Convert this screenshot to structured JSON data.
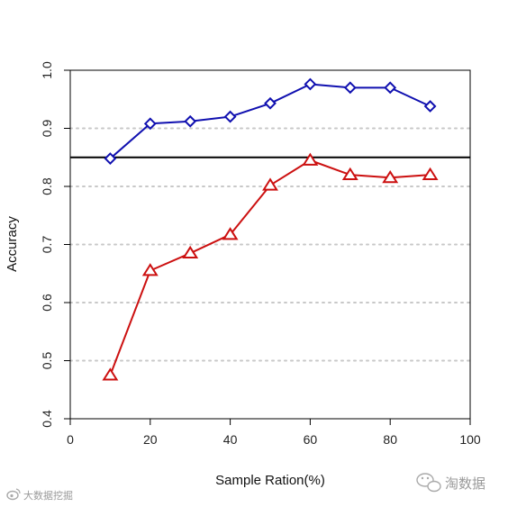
{
  "chart_data": {
    "type": "line",
    "title": "",
    "xlabel": "Sample Ration(%)",
    "ylabel": "Accuracy",
    "xlim": [
      0,
      100
    ],
    "ylim": [
      0.4,
      1.0
    ],
    "xticks": [
      0,
      20,
      40,
      60,
      80,
      100
    ],
    "yticks": [
      0.4,
      0.5,
      0.6,
      0.7,
      0.8,
      0.9,
      1.0
    ],
    "x_tick_labels": [
      "0",
      "20",
      "40",
      "60",
      "80",
      "100"
    ],
    "y_tick_labels": [
      "0.4",
      "0.5",
      "0.6",
      "0.7",
      "0.8",
      "0.9",
      "1.0"
    ],
    "grid": "horizontal dotted at 0.5, 0.6, 0.7, 0.8, 0.9",
    "legend": "none",
    "reference_line": {
      "y": 0.85,
      "color": "#000000"
    },
    "series": [
      {
        "marker": "diamond",
        "color": "#1010b0",
        "x": [
          10,
          20,
          30,
          40,
          50,
          60,
          70,
          80,
          90
        ],
        "y": [
          0.848,
          0.908,
          0.912,
          0.92,
          0.943,
          0.976,
          0.97,
          0.97,
          0.938
        ]
      },
      {
        "marker": "triangle",
        "color": "#cc1010",
        "x": [
          10,
          20,
          30,
          40,
          50,
          60,
          70,
          80,
          90
        ],
        "y": [
          0.475,
          0.655,
          0.685,
          0.717,
          0.802,
          0.845,
          0.82,
          0.815,
          0.82
        ]
      }
    ]
  },
  "watermarks": {
    "left": "大数据挖掘",
    "right": "淘数据"
  }
}
